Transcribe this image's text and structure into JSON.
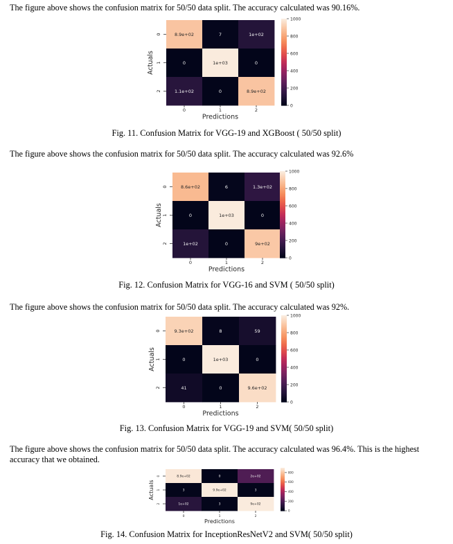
{
  "blocks": {
    "para1": "The figure above shows the confusion matrix for 50/50 data split. The accuracy calculated was 90.16%.",
    "caption1": "Fig. 11. Confusion Matrix for VGG-19 and XGBoost ( 50/50 split)",
    "para2": "The figure above shows the confusion matrix for 50/50 data split. The accuracy calculated was 92.6%",
    "caption2": "Fig. 12. Confusion Matrix for VGG-16 and SVM ( 50/50 split)",
    "para3": "The figure above shows the confusion matrix for 50/50 data split. The accuracy calculated was 92%.",
    "caption3": "Fig. 13. Confusion Matrix for VGG-19 and SVM( 50/50 split)",
    "para4": "The figure above shows the confusion matrix for 50/50 data split. The accuracy calculated was 96.4%. This is the highest accuracy that we obtained.",
    "caption4": "Fig. 14. Confusion Matrix for InceptionResNetV2 and SVM( 50/50 split)"
  },
  "colormap": [
    "#03051a",
    "#1f1235",
    "#3a1a4a",
    "#5a1f59",
    "#7d2360",
    "#a1235f",
    "#c32d57",
    "#df4a4c",
    "#ef6c4d",
    "#f6915f",
    "#f8b084",
    "#faceae",
    "#faebdd"
  ],
  "chart_data": [
    {
      "type": "heatmap",
      "xlabel": "Predictions",
      "ylabel": "Actuals",
      "x_categories": [
        "0",
        "1",
        "2"
      ],
      "y_categories": [
        "0",
        "1",
        "2"
      ],
      "values": [
        [
          890,
          7,
          100
        ],
        [
          0,
          1000,
          0
        ],
        [
          110,
          0,
          890
        ]
      ],
      "annotations": [
        [
          "8.9e+02",
          "7",
          "1e+02"
        ],
        [
          "0",
          "1e+03",
          "0"
        ],
        [
          "1.1e+02",
          "0",
          "8.9e+02"
        ]
      ],
      "colorbar_range": [
        0,
        1000
      ],
      "colorbar_ticks": [
        "0",
        "200",
        "400",
        "600",
        "800",
        "1000"
      ]
    },
    {
      "type": "heatmap",
      "xlabel": "Predictions",
      "ylabel": "Actuals",
      "x_categories": [
        "0",
        "1",
        "2"
      ],
      "y_categories": [
        "0",
        "1",
        "2"
      ],
      "values": [
        [
          860,
          6,
          130
        ],
        [
          0,
          1000,
          0
        ],
        [
          100,
          0,
          900
        ]
      ],
      "annotations": [
        [
          "8.6e+02",
          "6",
          "1.3e+02"
        ],
        [
          "0",
          "1e+03",
          "0"
        ],
        [
          "1e+02",
          "0",
          "9e+02"
        ]
      ],
      "colorbar_range": [
        0,
        1000
      ],
      "colorbar_ticks": [
        "0",
        "200",
        "400",
        "600",
        "800",
        "1000"
      ]
    },
    {
      "type": "heatmap",
      "xlabel": "Predictions",
      "ylabel": "Actuals",
      "x_categories": [
        "0",
        "1",
        "2"
      ],
      "y_categories": [
        "0",
        "1",
        "2"
      ],
      "values": [
        [
          930,
          8,
          59
        ],
        [
          0,
          1000,
          0
        ],
        [
          41,
          0,
          960
        ]
      ],
      "annotations": [
        [
          "9.3e+02",
          "8",
          "59"
        ],
        [
          "0",
          "1e+03",
          "0"
        ],
        [
          "41",
          "0",
          "9.6e+02"
        ]
      ],
      "colorbar_range": [
        0,
        1000
      ],
      "colorbar_ticks": [
        "0",
        "200",
        "400",
        "600",
        "800",
        "1000"
      ]
    },
    {
      "type": "heatmap",
      "xlabel": "Predictions",
      "ylabel": "Actuals",
      "x_categories": [
        "0",
        "1",
        "2"
      ],
      "y_categories": [
        "0",
        "1",
        "2"
      ],
      "values": [
        [
          890,
          0,
          200
        ],
        [
          3,
          990,
          3
        ],
        [
          100,
          3,
          900
        ]
      ],
      "annotations": [
        [
          "8.9e+02",
          "0",
          "2e+02"
        ],
        [
          "3",
          "9.9e+02",
          "3"
        ],
        [
          "1e+02",
          "3",
          "9e+02"
        ]
      ],
      "colorbar_range": [
        0,
        900
      ],
      "colorbar_ticks": [
        "0",
        "200",
        "400",
        "600",
        "800"
      ]
    }
  ]
}
